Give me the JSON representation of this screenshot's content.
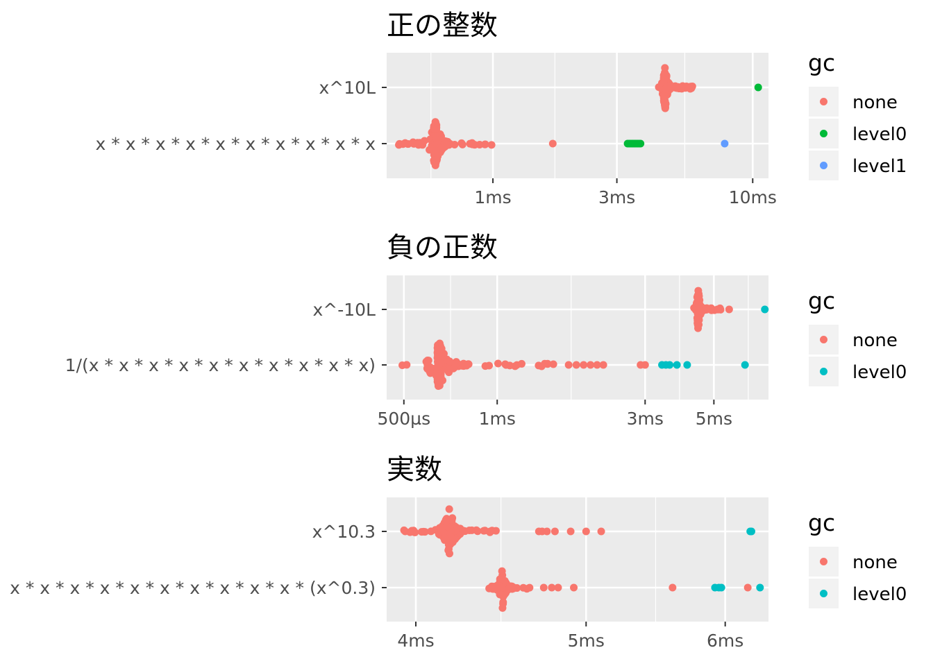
{
  "chart_data": [
    {
      "type": "scatter",
      "title": "正の整数",
      "x_scale": "log",
      "x_unit": "ms",
      "categories": [
        "x^10L",
        "x * x * x * x * x * x * x * x * x * x"
      ],
      "x_ticks": [
        {
          "value": 1,
          "label": "1ms"
        },
        {
          "value": 3,
          "label": "3ms"
        },
        {
          "value": 10,
          "label": "10ms"
        }
      ],
      "xlim": [
        0.39,
        11.5
      ],
      "legend": {
        "title": "gc",
        "placement": "right",
        "entries": [
          {
            "label": "none",
            "color": "#F8766D"
          },
          {
            "label": "level0",
            "color": "#00BA38"
          },
          {
            "label": "level1",
            "color": "#619CFF"
          }
        ]
      },
      "series": [
        {
          "category": "x^10L",
          "gc": "none",
          "cluster": {
            "min": 4.3,
            "max": 6.2,
            "mode": 4.6,
            "n": 140
          }
        },
        {
          "category": "x^10L",
          "gc": "level0",
          "values": [
            10.5
          ]
        },
        {
          "category": "x * x * x * x * x * x * x * x * x * x",
          "gc": "none",
          "cluster": {
            "min": 0.43,
            "max": 1.02,
            "mode": 0.6,
            "n": 150
          },
          "values": [
            1.7
          ]
        },
        {
          "category": "x * x * x * x * x * x * x * x * x * x",
          "gc": "level0",
          "values": [
            3.3,
            3.35,
            3.4,
            3.45,
            3.5,
            3.55,
            3.6,
            3.65,
            3.7
          ]
        },
        {
          "category": "x * x * x * x * x * x * x * x * x * x",
          "gc": "level1",
          "values": [
            7.8
          ]
        }
      ]
    },
    {
      "type": "scatter",
      "title": "負の正数",
      "x_scale": "log",
      "x_unit": "ms",
      "categories": [
        "x^-10L",
        "1/(x * x * x * x * x * x * x * x * x * x)"
      ],
      "x_ticks": [
        {
          "value": 0.5,
          "label": "500µs"
        },
        {
          "value": 1,
          "label": "1ms"
        },
        {
          "value": 3,
          "label": "3ms"
        },
        {
          "value": 5,
          "label": "5ms"
        }
      ],
      "xlim": [
        0.44,
        7.5
      ],
      "legend": {
        "title": "gc",
        "placement": "right",
        "entries": [
          {
            "label": "none",
            "color": "#F8766D"
          },
          {
            "label": "level0",
            "color": "#00BFC4"
          }
        ]
      },
      "series": [
        {
          "category": "x^-10L",
          "gc": "none",
          "cluster": {
            "min": 4.3,
            "max": 5.3,
            "mode": 4.45,
            "n": 80
          },
          "values": [
            5.6
          ]
        },
        {
          "category": "x^-10L",
          "gc": "level0",
          "values": [
            7.3
          ]
        },
        {
          "category": "1/(x * x * x * x * x * x * x * x * x * x)",
          "gc": "none",
          "cluster": {
            "min": 0.49,
            "max": 1.55,
            "mode": 0.65,
            "n": 160
          },
          "values": [
            1.7,
            1.8,
            1.9,
            2.0,
            2.1,
            2.2,
            2.9,
            3.0
          ]
        },
        {
          "category": "1/(x * x * x * x * x * x * x * x * x * x)",
          "gc": "level0",
          "values": [
            3.4,
            3.5,
            3.6,
            3.8,
            4.1,
            6.3
          ]
        }
      ]
    },
    {
      "type": "scatter",
      "title": "実数",
      "x_scale": "log",
      "x_unit": "ms",
      "categories": [
        "x^10.3",
        "x * x * x * x * x * x * x * x * x * x * (x^0.3)"
      ],
      "x_ticks": [
        {
          "value": 4,
          "label": "4ms"
        },
        {
          "value": 5,
          "label": "5ms"
        },
        {
          "value": 6,
          "label": "6ms"
        }
      ],
      "xlim": [
        3.85,
        6.35
      ],
      "legend": {
        "title": "gc",
        "placement": "right",
        "entries": [
          {
            "label": "none",
            "color": "#F8766D"
          },
          {
            "label": "level0",
            "color": "#00BFC4"
          }
        ]
      },
      "series": [
        {
          "category": "x^10.3",
          "gc": "none",
          "cluster": {
            "min": 3.93,
            "max": 4.45,
            "mode": 4.18,
            "n": 150
          },
          "values": [
            4.7,
            4.72,
            4.75,
            4.8,
            4.9,
            5.0,
            5.1
          ]
        },
        {
          "category": "x^10.3",
          "gc": "level0",
          "values": [
            6.2,
            6.21
          ]
        },
        {
          "category": "x * x * x * x * x * x * x * x * x * x * (x^0.3)",
          "gc": "none",
          "cluster": {
            "min": 4.4,
            "max": 4.65,
            "mode": 4.48,
            "n": 110
          },
          "values": [
            4.73,
            4.78,
            4.82,
            4.92,
            5.6,
            6.18
          ]
        },
        {
          "category": "x * x * x * x * x * x * x * x * x * x * (x^0.3)",
          "gc": "level0",
          "values": [
            5.92,
            5.95,
            5.97,
            6.28
          ]
        }
      ]
    }
  ]
}
